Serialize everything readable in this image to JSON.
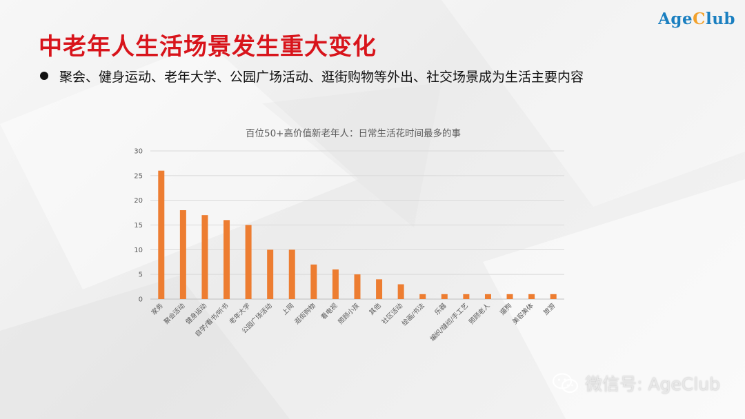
{
  "logo": {
    "part1": "Age",
    "part2": "C",
    "part3": "lub"
  },
  "slide": {
    "title": "中老年人生活场景发生重大变化",
    "bullet": "聚会、健身运动、老年大学、公园广场活动、逛街购物等外出、社交场景成为生活主要内容"
  },
  "watermark": {
    "text": "微信号: AgeClub"
  },
  "colors": {
    "title": "#d8141b",
    "bar": "#ed7d31",
    "logo_blue": "#1a7fc0",
    "logo_orange": "#f2a12b"
  },
  "chart_data": {
    "type": "bar",
    "title": "百位50+高价值新老年人：日常生活花时间最多的事",
    "xlabel": "",
    "ylabel": "",
    "ylim": [
      0,
      30
    ],
    "yticks": [
      0,
      5,
      10,
      15,
      20,
      25,
      30
    ],
    "grid": true,
    "legend": "none",
    "categories": [
      "家务",
      "聚会活动",
      "健身运动",
      "自学/看书/听书",
      "老年大学",
      "公园广场活动",
      "上网",
      "逛街购物",
      "看电视",
      "照顾小孩",
      "其他",
      "社区活动",
      "绘画/书法",
      "乐器",
      "编织/缝纫/手工艺",
      "照顾老人",
      "遛狗",
      "美容美体",
      "旅游"
    ],
    "values": [
      26,
      18,
      17,
      16,
      15,
      10,
      10,
      7,
      6,
      5,
      4,
      3,
      1,
      1,
      1,
      1,
      1,
      1,
      1
    ]
  }
}
